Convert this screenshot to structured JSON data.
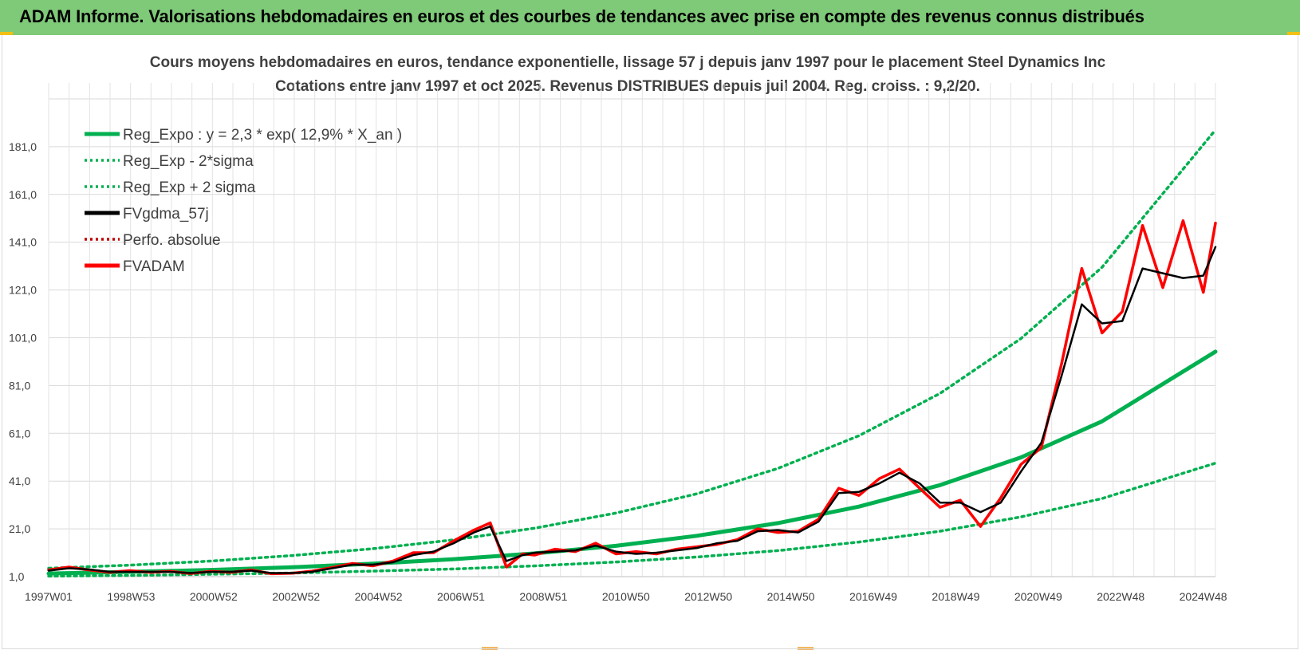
{
  "banner": {
    "title": "ADAM Informe. Valorisations hebdomadaires en euros et des courbes de tendances avec prise en compte des revenus connus distribués"
  },
  "colors": {
    "banner_bg": "#7fca78",
    "trend": "#00b050",
    "fvgdma": "#000000",
    "fvadam": "#ff0000",
    "perfo": "#c00000"
  },
  "chart_data": {
    "type": "line",
    "title": "Cours moyens hebdomadaires en euros, tendance exponentielle, lissage 57 j depuis janv 1997 pour le placement Steel Dynamics Inc",
    "subtitle": "Cotations entre janv 1997 et oct 2025. Revenus DISTRIBUES depuis juil 2004. Reg. croiss. : 9,2/20.",
    "x_tick_labels": [
      "1997W01",
      "1998W53",
      "2000W52",
      "2002W52",
      "2004W52",
      "2006W51",
      "2008W51",
      "2010W50",
      "2012W50",
      "2014W50",
      "2016W49",
      "2018W49",
      "2020W49",
      "2022W48",
      "2024W48"
    ],
    "y_tick_labels": [
      "1,0",
      "21,0",
      "41,0",
      "61,0",
      "81,0",
      "101,0",
      "121,0",
      "141,0",
      "161,0",
      "181,0"
    ],
    "x_range": [
      1997.0,
      2025.8
    ],
    "ylim": [
      1.0,
      201.0
    ],
    "grid": true,
    "legend_position": "top-left",
    "legend": [
      {
        "label": "Reg_Expo : y = 2,3 * exp( 12,9% *  X_an )",
        "style": "solid",
        "color": "#00b050"
      },
      {
        "label": "Reg_Exp - 2*sigma",
        "style": "dotted",
        "color": "#00b050"
      },
      {
        "label": "Reg_Exp + 2 sigma",
        "style": "dotted",
        "color": "#00b050"
      },
      {
        "label": "FVgdma_57j",
        "style": "solid",
        "color": "#000000"
      },
      {
        "label": "Perfo. absolue",
        "style": "dotted",
        "color": "#c00000"
      },
      {
        "label": "FVADAM",
        "style": "solid",
        "color": "#ff0000"
      }
    ],
    "series": [
      {
        "name": "Reg_Expo : y = 2,3 * exp( 12,9% *  X_an )",
        "x": [
          1997.0,
          1999.0,
          2001.0,
          2003.0,
          2005.0,
          2007.0,
          2009.0,
          2011.0,
          2013.0,
          2015.0,
          2017.0,
          2019.0,
          2021.0,
          2023.0,
          2025.8
        ],
        "y": [
          2.3,
          3.0,
          3.8,
          4.9,
          6.4,
          8.3,
          10.7,
          13.9,
          18.1,
          23.4,
          30.3,
          39.3,
          50.9,
          66.0,
          95.2
        ]
      },
      {
        "name": "Reg_Exp - 2*sigma",
        "x": [
          1997.0,
          1999.0,
          2001.0,
          2003.0,
          2005.0,
          2007.0,
          2009.0,
          2011.0,
          2013.0,
          2015.0,
          2017.0,
          2019.0,
          2021.0,
          2023.0,
          2025.8
        ],
        "y": [
          1.2,
          1.5,
          2.0,
          2.5,
          3.3,
          4.2,
          5.5,
          7.1,
          9.2,
          11.9,
          15.5,
          20.0,
          26.0,
          33.7,
          48.5
        ]
      },
      {
        "name": "Reg_Exp + 2 sigma",
        "x": [
          1997.0,
          1999.0,
          2001.0,
          2003.0,
          2005.0,
          2007.0,
          2009.0,
          2011.0,
          2013.0,
          2015.0,
          2017.0,
          2019.0,
          2021.0,
          2023.0,
          2025.8
        ],
        "y": [
          4.5,
          5.8,
          7.5,
          9.8,
          12.7,
          16.4,
          21.3,
          27.6,
          35.7,
          46.3,
          60.0,
          77.7,
          100.7,
          130.5,
          188.0
        ]
      },
      {
        "name": "FVgdma_57j",
        "x": [
          1997.0,
          1997.5,
          1998.0,
          1998.5,
          1999.0,
          1999.5,
          2000.0,
          2000.5,
          2001.0,
          2001.5,
          2002.0,
          2002.5,
          2003.0,
          2003.5,
          2004.0,
          2004.5,
          2005.0,
          2005.5,
          2006.0,
          2006.5,
          2007.0,
          2007.5,
          2007.9,
          2008.3,
          2008.7,
          2009.0,
          2009.5,
          2010.0,
          2010.5,
          2011.0,
          2011.5,
          2012.0,
          2012.5,
          2013.0,
          2013.5,
          2014.0,
          2014.5,
          2015.0,
          2015.5,
          2016.0,
          2016.5,
          2017.0,
          2017.5,
          2018.0,
          2018.5,
          2019.0,
          2019.5,
          2020.0,
          2020.5,
          2021.0,
          2021.5,
          2022.0,
          2022.5,
          2023.0,
          2023.5,
          2024.0,
          2024.5,
          2025.0,
          2025.5,
          2025.8
        ],
        "y": [
          3.5,
          4.5,
          4.0,
          3.0,
          3.0,
          3.0,
          3.0,
          2.5,
          3.0,
          3.0,
          3.5,
          2.5,
          2.5,
          3.0,
          4.5,
          6.0,
          6.0,
          7.0,
          10.0,
          11.5,
          15.0,
          19.5,
          22.0,
          7.5,
          10.0,
          11.0,
          11.5,
          12.0,
          14.0,
          11.5,
          10.5,
          11.0,
          12.0,
          13.0,
          15.0,
          16.0,
          20.0,
          20.5,
          19.5,
          24.0,
          36.0,
          36.5,
          40.0,
          44.5,
          40.0,
          32.0,
          32.0,
          28.0,
          32.0,
          45.0,
          57.0,
          85.0,
          115.0,
          107.0,
          108.0,
          130.0,
          128.0,
          126.0,
          127.0,
          139.0
        ]
      },
      {
        "name": "FVADAM",
        "x": [
          1997.0,
          1997.5,
          1998.0,
          1998.5,
          1999.0,
          1999.5,
          2000.0,
          2000.5,
          2001.0,
          2001.5,
          2002.0,
          2002.5,
          2003.0,
          2003.5,
          2004.0,
          2004.5,
          2005.0,
          2005.5,
          2006.0,
          2006.5,
          2007.0,
          2007.5,
          2007.9,
          2008.3,
          2008.7,
          2009.0,
          2009.5,
          2010.0,
          2010.5,
          2011.0,
          2011.5,
          2012.0,
          2012.5,
          2013.0,
          2013.5,
          2014.0,
          2014.5,
          2015.0,
          2015.5,
          2016.0,
          2016.5,
          2017.0,
          2017.5,
          2018.0,
          2018.5,
          2019.0,
          2019.5,
          2020.0,
          2020.5,
          2021.0,
          2021.5,
          2022.0,
          2022.5,
          2023.0,
          2023.5,
          2024.0,
          2024.5,
          2025.0,
          2025.5,
          2025.8
        ],
        "y": [
          3.8,
          5.0,
          3.8,
          2.8,
          3.5,
          2.8,
          3.2,
          2.3,
          3.2,
          2.8,
          3.8,
          2.2,
          2.4,
          3.3,
          4.8,
          6.5,
          5.5,
          7.5,
          11.0,
          11.0,
          16.0,
          20.5,
          23.5,
          5.0,
          10.5,
          10.0,
          12.5,
          11.5,
          15.0,
          10.5,
          11.5,
          10.5,
          12.5,
          13.5,
          14.5,
          16.5,
          21.0,
          19.5,
          20.0,
          25.0,
          38.0,
          35.0,
          42.0,
          46.0,
          38.0,
          30.0,
          33.0,
          22.0,
          34.0,
          48.0,
          55.0,
          90.0,
          130.0,
          103.0,
          112.0,
          148.0,
          122.0,
          150.0,
          120.0,
          149.0
        ]
      }
    ]
  }
}
